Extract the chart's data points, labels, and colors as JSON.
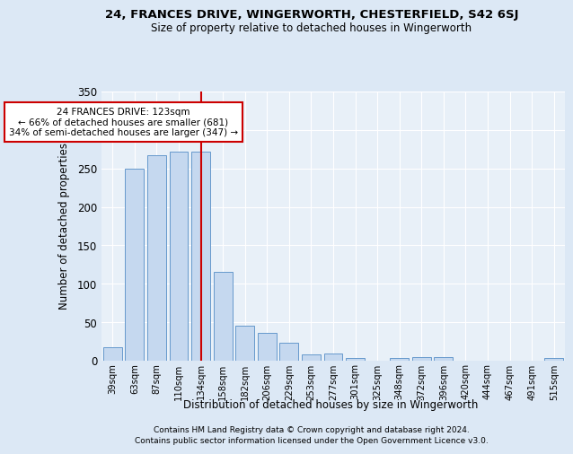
{
  "title1": "24, FRANCES DRIVE, WINGERWORTH, CHESTERFIELD, S42 6SJ",
  "title2": "Size of property relative to detached houses in Wingerworth",
  "xlabel": "Distribution of detached houses by size in Wingerworth",
  "ylabel": "Number of detached properties",
  "footnote1": "Contains HM Land Registry data © Crown copyright and database right 2024.",
  "footnote2": "Contains public sector information licensed under the Open Government Licence v3.0.",
  "bar_labels": [
    "39sqm",
    "63sqm",
    "87sqm",
    "110sqm",
    "134sqm",
    "158sqm",
    "182sqm",
    "206sqm",
    "229sqm",
    "253sqm",
    "277sqm",
    "301sqm",
    "325sqm",
    "348sqm",
    "372sqm",
    "396sqm",
    "420sqm",
    "444sqm",
    "467sqm",
    "491sqm",
    "515sqm"
  ],
  "bar_values": [
    17,
    250,
    267,
    272,
    272,
    116,
    45,
    36,
    23,
    8,
    9,
    3,
    0,
    4,
    5,
    5,
    0,
    0,
    0,
    0,
    3
  ],
  "bar_color": "#c5d8ef",
  "bar_edge_color": "#6699cc",
  "vline_x": 4.0,
  "vline_color": "#cc0000",
  "annotation_line1": "24 FRANCES DRIVE: 123sqm",
  "annotation_line2": "← 66% of detached houses are smaller (681)",
  "annotation_line3": "34% of semi-detached houses are larger (347) →",
  "annotation_box_facecolor": "#ffffff",
  "annotation_box_edgecolor": "#cc0000",
  "ylim": [
    0,
    350
  ],
  "yticks": [
    0,
    50,
    100,
    150,
    200,
    250,
    300,
    350
  ],
  "bg_color": "#dce8f5",
  "plot_bg_color": "#e8f0f8",
  "grid_color": "#ffffff"
}
